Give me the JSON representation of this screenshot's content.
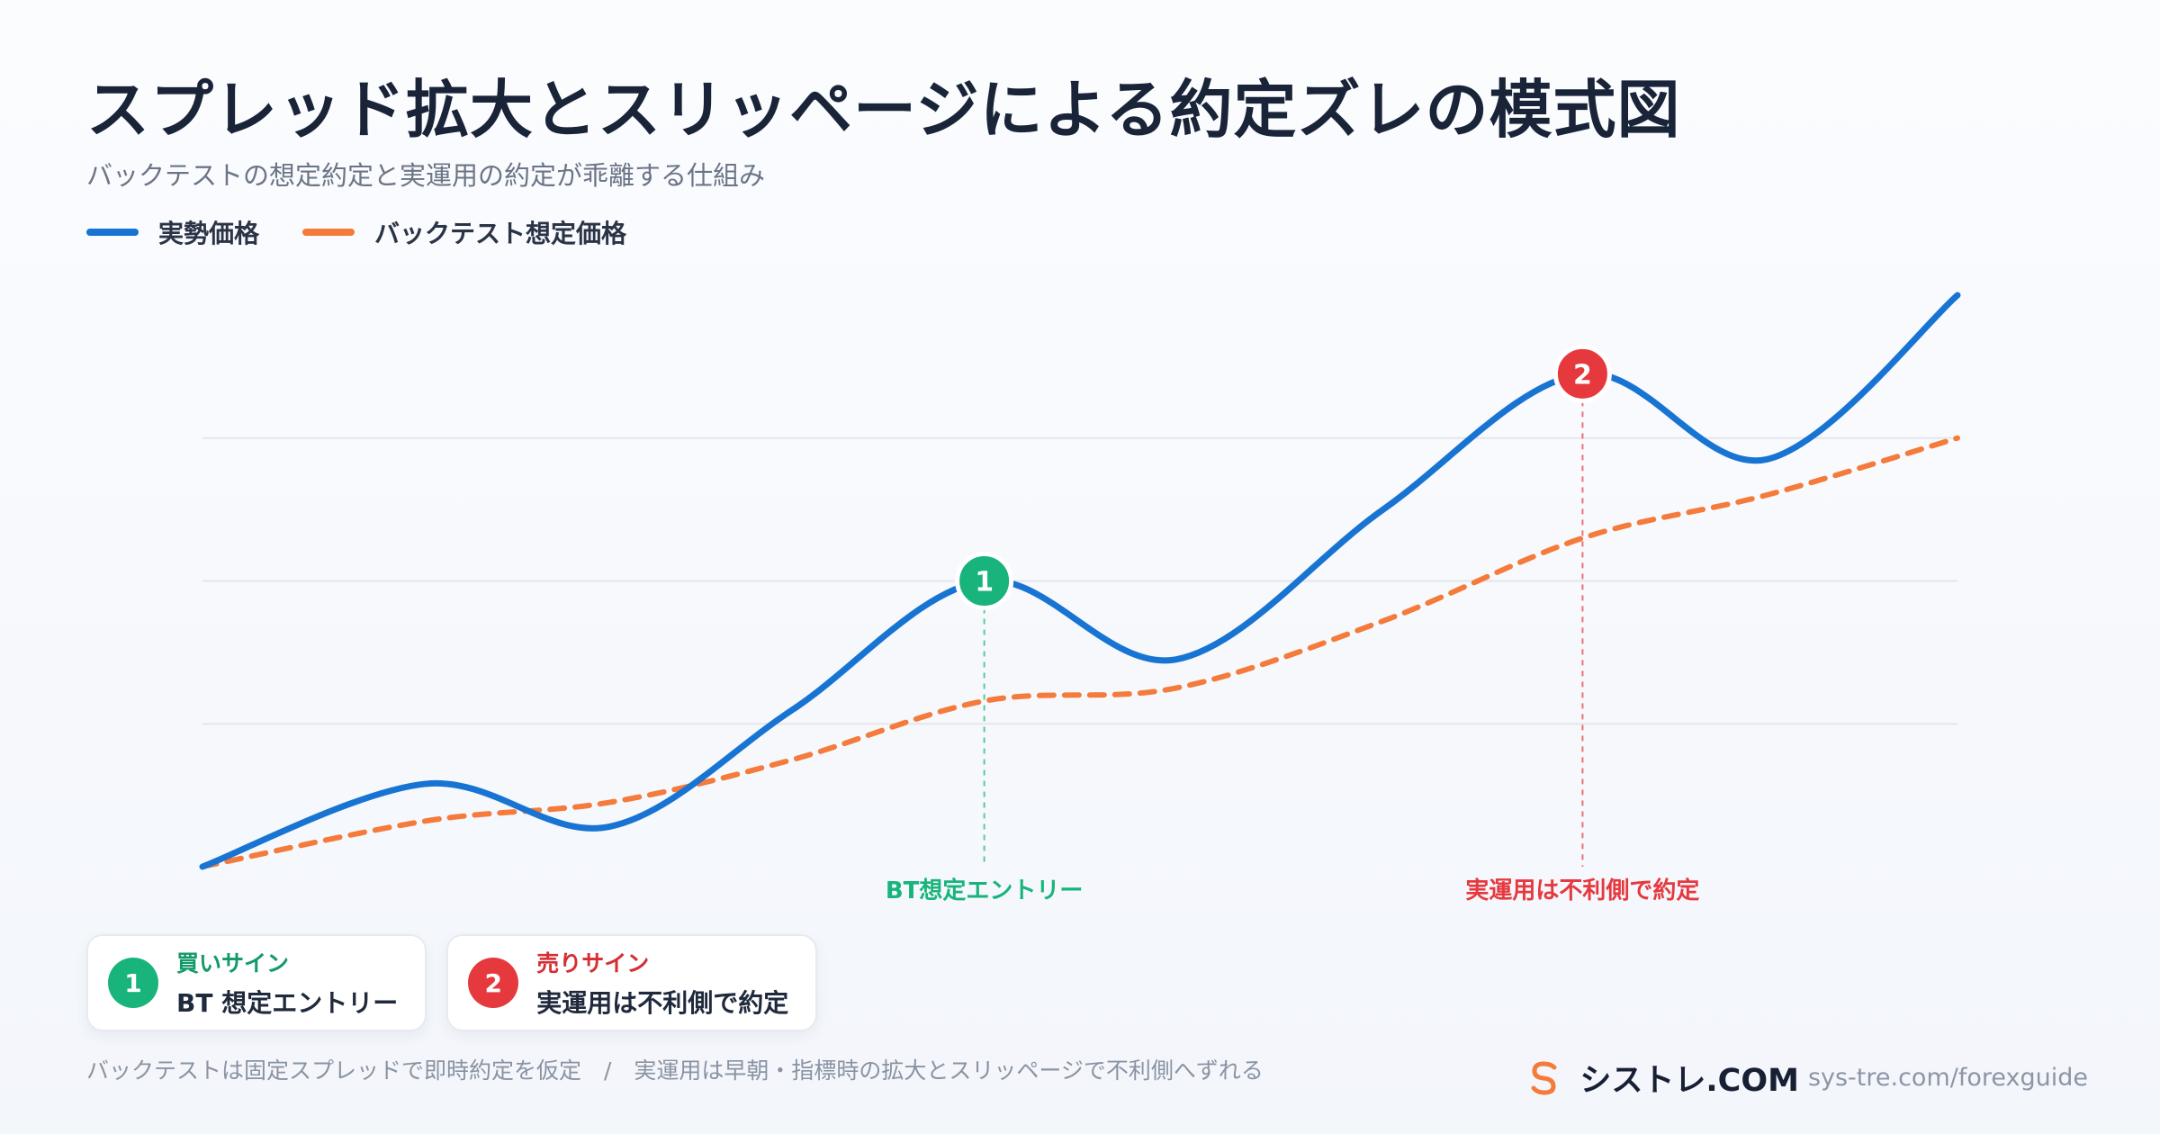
{
  "header": {
    "title": "スプレッド拡大とスリッページによる約定ズレの模式図",
    "subtitle": "バックテストの想定約定と実運用の約定が乖離する仕組み"
  },
  "legend": [
    {
      "label": "実勢価格",
      "color": "#1874d2"
    },
    {
      "label": "バックテスト想定価格",
      "color": "#f47b3b"
    }
  ],
  "chart_data": {
    "type": "line",
    "x": [
      0,
      1,
      2,
      3,
      4,
      5,
      6,
      7,
      8,
      9,
      10,
      11
    ],
    "xlim": [
      0,
      11
    ],
    "ylim": [
      0,
      4
    ],
    "grid": true,
    "series": [
      {
        "name": "実勢価格",
        "color": "#1874d2",
        "style": "solid",
        "values": [
          0,
          0.58,
          0.28,
          1.1,
          2.0,
          1.45,
          2.5,
          3.45,
          2.85,
          4.0
        ],
        "x": [
          0,
          1.4,
          2.55,
          3.7,
          4.9,
          6.1,
          7.4,
          8.65,
          9.8,
          11
        ]
      },
      {
        "name": "バックテスト想定価格",
        "color": "#f47b3b",
        "style": "dashed",
        "values": [
          0,
          0.32,
          0.45,
          0.75,
          1.16,
          1.25,
          1.72,
          2.3,
          2.6,
          3.0
        ],
        "x": [
          0,
          1.4,
          2.55,
          3.7,
          4.9,
          6.1,
          7.4,
          8.65,
          9.8,
          11
        ]
      }
    ],
    "annotations": [
      {
        "id": "1",
        "x": 4.9,
        "y": 2.0,
        "label": "BT想定エントリー",
        "color": "#18b47b"
      },
      {
        "id": "2",
        "x": 8.65,
        "y": 3.45,
        "label": "実運用は不利側で約定",
        "color": "#e6393e"
      }
    ]
  },
  "cards": [
    {
      "badge": "1",
      "title": "買いサイン",
      "desc": "BT 想定エントリー",
      "color": "#18b47b",
      "title_color": "#139a68"
    },
    {
      "badge": "2",
      "title": "売りサイン",
      "desc": "実運用は不利側で約定",
      "color": "#e6393e",
      "title_color": "#d62e33"
    }
  ],
  "footer": {
    "note": "バックテストは固定スプレッドで即時約定を仮定　/　実運用は早朝・指標時の拡大とスリッページで不利側へずれる",
    "brand_name": "シストレ.COM",
    "brand_url": "sys-tre.com/forexguide",
    "brand_color": "#f47b3b"
  }
}
